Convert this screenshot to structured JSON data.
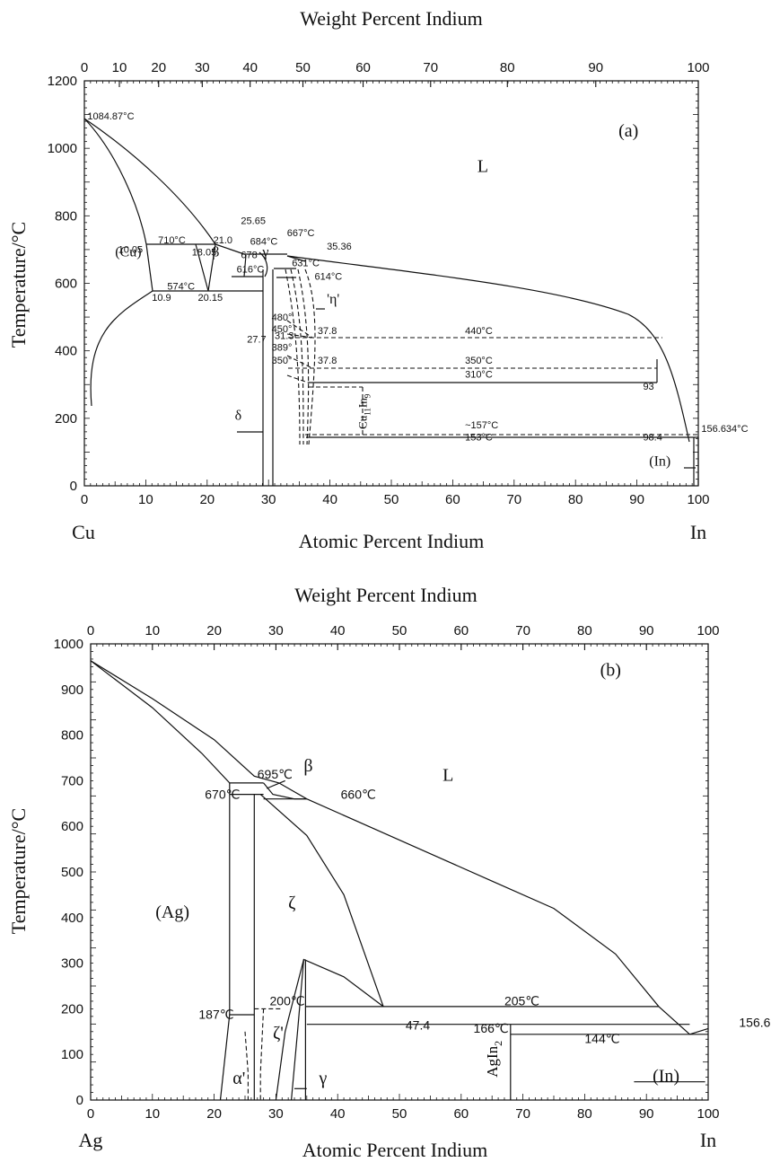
{
  "chart_data": [
    {
      "type": "phase-diagram",
      "panel": "(a)",
      "title": "Weight Percent Indium",
      "xlabel": "Atomic Percent Indium",
      "ylabel": "Temperature/°C",
      "left_element": "Cu",
      "right_element": "In",
      "xlim": [
        0,
        100
      ],
      "ylim": [
        0,
        1200
      ],
      "x_ticks": [
        "0",
        "10",
        "20",
        "30",
        "40",
        "50",
        "60",
        "70",
        "80",
        "90",
        "100"
      ],
      "y_ticks": [
        "0",
        "200",
        "400",
        "600",
        "800",
        "1000",
        "1200"
      ],
      "top_ticks": [
        {
          "at_pct": 0,
          "label": "0"
        },
        {
          "at_pct": 5.7,
          "label": "10"
        },
        {
          "at_pct": 12.1,
          "label": "20"
        },
        {
          "at_pct": 19.2,
          "label": "30"
        },
        {
          "at_pct": 27.0,
          "label": "40"
        },
        {
          "at_pct": 35.6,
          "label": "50"
        },
        {
          "at_pct": 45.4,
          "label": "60"
        },
        {
          "at_pct": 56.4,
          "label": "70"
        },
        {
          "at_pct": 68.9,
          "label": "80"
        },
        {
          "at_pct": 83.3,
          "label": "90"
        },
        {
          "at_pct": 100,
          "label": "100"
        }
      ],
      "phase_labels": [
        {
          "text": "L",
          "x": 64,
          "y": 930
        },
        {
          "text": "(Cu)",
          "x": 5,
          "y": 680
        },
        {
          "text": "β",
          "x": 20.8,
          "y": 680
        },
        {
          "text": "γ",
          "x": 29,
          "y": 680
        },
        {
          "text": "(In)",
          "x": 92,
          "y": 60
        },
        {
          "text": "δ",
          "x": 24.5,
          "y": 195
        },
        {
          "text": "'η'",
          "x": 39.5,
          "y": 540
        }
      ],
      "annotations": [
        {
          "text": "(a)",
          "x": 87,
          "y": 1035
        },
        {
          "text": "1084.87°C",
          "x": 0.5,
          "y": 1085
        },
        {
          "text": "710°C",
          "x": 12,
          "y": 718
        },
        {
          "text": "10.05",
          "x": 5.5,
          "y": 690
        },
        {
          "text": "18.05",
          "x": 17.5,
          "y": 682
        },
        {
          "text": "21.0",
          "x": 21,
          "y": 718
        },
        {
          "text": "25.65",
          "x": 25.5,
          "y": 775
        },
        {
          "text": "667°C",
          "x": 33,
          "y": 740
        },
        {
          "text": "684°C",
          "x": 27,
          "y": 715
        },
        {
          "text": "35.36",
          "x": 39.5,
          "y": 700
        },
        {
          "text": "678",
          "x": 25.5,
          "y": 675
        },
        {
          "text": "616°C",
          "x": 24.8,
          "y": 632
        },
        {
          "text": "631°C",
          "x": 33.8,
          "y": 650
        },
        {
          "text": "614°C",
          "x": 37.5,
          "y": 610
        },
        {
          "text": "574°C",
          "x": 13.5,
          "y": 582
        },
        {
          "text": "10.9",
          "x": 11,
          "y": 548
        },
        {
          "text": "20.15",
          "x": 18.5,
          "y": 548
        },
        {
          "text": "27.7",
          "x": 26.5,
          "y": 425
        },
        {
          "text": "31.3",
          "x": 31,
          "y": 435
        },
        {
          "text": "480°",
          "x": 30.5,
          "y": 490
        },
        {
          "text": "450°",
          "x": 30.5,
          "y": 455
        },
        {
          "text": "37.8",
          "x": 38,
          "y": 450
        },
        {
          "text": "440°C",
          "x": 62,
          "y": 450
        },
        {
          "text": "389°",
          "x": 30.5,
          "y": 400
        },
        {
          "text": "350°",
          "x": 30.5,
          "y": 362
        },
        {
          "text": "37.8",
          "x": 38,
          "y": 362
        },
        {
          "text": "350°C",
          "x": 62,
          "y": 362
        },
        {
          "text": "310°C",
          "x": 62,
          "y": 320
        },
        {
          "text": "93",
          "x": 91,
          "y": 285
        },
        {
          "text": "~157°C",
          "x": 62,
          "y": 170
        },
        {
          "text": "153°C",
          "x": 62,
          "y": 135
        },
        {
          "text": "98.4",
          "x": 91,
          "y": 135
        },
        {
          "text": "156.634°C",
          "x": 100.5,
          "y": 160
        }
      ],
      "compound_labels": [
        {
          "name": "Cu",
          "subscript": "11",
          "name2": "In",
          "subscript2": "9",
          "x": 46,
          "y": 220
        }
      ]
    },
    {
      "type": "phase-diagram",
      "panel": "(b)",
      "title": "Weight Percent Indium",
      "xlabel": "Atomic Percent Indium",
      "ylabel": "Temperature/°C",
      "left_element": "Ag",
      "right_element": "In",
      "xlim": [
        0,
        100
      ],
      "ylim": [
        0,
        1000
      ],
      "x_ticks": [
        "0",
        "10",
        "20",
        "30",
        "40",
        "50",
        "60",
        "70",
        "80",
        "90",
        "100"
      ],
      "y_ticks": [
        "0",
        "100",
        "200",
        "300",
        "400",
        "500",
        "600",
        "700",
        "800",
        "900",
        "1000"
      ],
      "top_ticks": [
        "0",
        "10",
        "20",
        "30",
        "40",
        "50",
        "60",
        "70",
        "80",
        "90",
        "100"
      ],
      "phase_labels": [
        {
          "text": "L",
          "x": 57,
          "y": 700
        },
        {
          "text": "β",
          "x": 34.5,
          "y": 720
        },
        {
          "text": "(Ag)",
          "x": 10.5,
          "y": 400
        },
        {
          "text": "ζ",
          "x": 32,
          "y": 420
        },
        {
          "text": "ζ'",
          "x": 29.5,
          "y": 135
        },
        {
          "text": "α'",
          "x": 23,
          "y": 35
        },
        {
          "text": "γ",
          "x": 37,
          "y": 35
        },
        {
          "text": "(In)",
          "x": 91,
          "y": 40
        }
      ],
      "annotations": [
        {
          "text": "(b)",
          "x": 82.5,
          "y": 930
        },
        {
          "text": "695℃",
          "x": 27,
          "y": 705
        },
        {
          "text": "670℃",
          "x": 18.5,
          "y": 660
        },
        {
          "text": "660℃",
          "x": 40.5,
          "y": 660
        },
        {
          "text": "187℃",
          "x": 17.5,
          "y": 178
        },
        {
          "text": "200℃",
          "x": 29,
          "y": 208
        },
        {
          "text": "205℃",
          "x": 67,
          "y": 208
        },
        {
          "text": "47.4",
          "x": 51,
          "y": 155
        },
        {
          "text": "166℃",
          "x": 62,
          "y": 148
        },
        {
          "text": "144℃",
          "x": 80,
          "y": 125
        },
        {
          "text": "156.6℃",
          "x": 105,
          "y": 160
        }
      ],
      "compound_labels": [
        {
          "name": "AgIn",
          "subscript": "2",
          "x": 67,
          "y": 90
        }
      ]
    }
  ]
}
